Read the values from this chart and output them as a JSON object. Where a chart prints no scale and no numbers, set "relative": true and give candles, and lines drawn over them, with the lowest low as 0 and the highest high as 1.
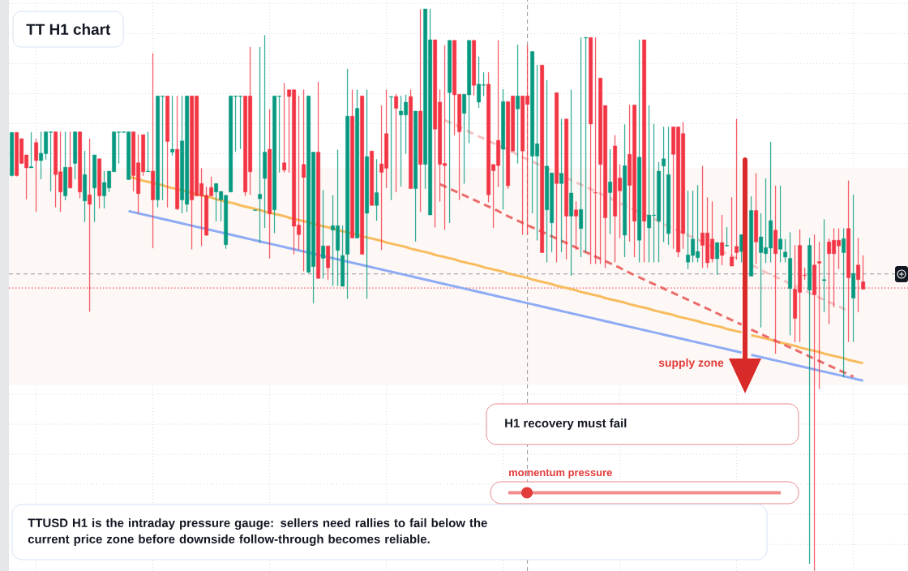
{
  "chart_data": {
    "type": "candlestick",
    "title": "TT H1 chart",
    "relative": true,
    "grid": true,
    "annotations": [
      "H1 recovery must fail",
      "momentum pressure",
      "TTUSD H1 is the intraday pressure gauge: sellers need rallies to fail below the current price zone before downside follow-through becomes reliable."
    ],
    "categories": [
      null,
      null,
      null,
      null,
      null,
      null,
      null,
      null,
      null,
      null,
      null,
      null,
      null,
      null,
      null,
      null,
      null,
      null,
      null,
      null,
      null,
      null,
      null,
      null,
      null,
      null,
      null,
      null,
      null,
      null,
      null,
      null,
      null,
      null,
      null,
      null,
      null,
      null,
      null,
      null,
      null,
      null,
      null,
      null,
      null,
      null,
      null,
      null,
      null,
      null,
      null,
      null,
      null,
      null,
      null,
      null,
      null,
      null,
      null,
      null,
      null,
      null,
      null,
      null,
      null,
      null,
      null,
      null,
      null,
      null,
      null,
      null,
      null,
      null,
      null,
      null,
      null,
      null,
      null,
      null,
      null,
      null,
      null,
      null,
      null,
      null,
      null,
      null,
      null,
      null,
      null,
      null,
      null,
      null,
      null,
      null,
      null,
      null,
      null,
      null,
      null,
      null,
      null,
      null,
      null,
      null,
      null,
      null,
      null,
      null,
      null,
      null,
      null,
      null,
      null,
      null,
      null,
      null,
      null,
      null,
      null,
      null,
      null,
      null,
      null,
      null,
      null,
      null,
      null,
      null,
      null,
      null,
      null,
      null,
      null,
      null,
      null,
      null,
      null,
      null,
      null,
      null,
      null,
      null,
      null,
      null,
      null,
      null,
      null,
      null,
      null,
      null,
      null,
      null,
      null,
      null,
      null,
      null,
      null,
      null,
      null,
      null,
      null,
      null,
      null,
      null,
      null,
      null,
      null,
      null,
      null,
      null,
      null,
      null,
      null,
      null
    ],
    "ohlc": [
      [
        0.703,
        0.78,
        0.702,
        0.78
      ],
      [
        0.78,
        0.78,
        0.702,
        0.703
      ],
      [
        0.769,
        0.769,
        0.724,
        0.725
      ],
      [
        0.74,
        0.74,
        0.661,
        0.717
      ],
      [
        0.717,
        0.78,
        0.717,
        0.719
      ],
      [
        0.762,
        0.769,
        0.639,
        0.73
      ],
      [
        0.73,
        0.781,
        0.697,
        0.743
      ],
      [
        0.742,
        0.781,
        0.732,
        0.781
      ],
      [
        0.78,
        0.781,
        0.675,
        0.781
      ],
      [
        0.781,
        0.781,
        0.647,
        0.705
      ],
      [
        0.71,
        0.781,
        0.639,
        0.674
      ],
      [
        0.667,
        0.781,
        0.66,
        0.718
      ],
      [
        0.718,
        0.781,
        0.681,
        0.681
      ],
      [
        0.725,
        0.781,
        0.697,
        0.781
      ],
      [
        0.781,
        0.781,
        0.663,
        0.674
      ],
      [
        0.658,
        0.747,
        0.621,
        0.705
      ],
      [
        0.669,
        0.769,
        0.461,
        0.652
      ],
      [
        0.681,
        0.74,
        0.621,
        0.74
      ],
      [
        0.733,
        0.733,
        0.645,
        0.667
      ],
      [
        0.667,
        0.711,
        0.645,
        0.691
      ],
      [
        0.681,
        0.711,
        0.674,
        0.711
      ],
      [
        0.71,
        0.781,
        0.71,
        0.781
      ],
      [
        0.78,
        0.781,
        0.725,
        0.781
      ],
      [
        0.78,
        0.781,
        0.78,
        0.781
      ],
      [
        0.696,
        0.781,
        0.696,
        0.781
      ],
      [
        0.781,
        0.781,
        0.675,
        0.703
      ],
      [
        0.726,
        0.776,
        0.636,
        0.671
      ],
      [
        0.776,
        0.776,
        0.703,
        0.71
      ],
      [
        0.71,
        0.781,
        0.71,
        0.711
      ],
      [
        0.711,
        0.921,
        0.574,
        0.66
      ],
      [
        0.66,
        0.845,
        0.647,
        0.845
      ],
      [
        0.844,
        0.845,
        0.66,
        0.845
      ],
      [
        0.845,
        0.845,
        0.647,
        0.764
      ],
      [
        0.745,
        0.845,
        0.739,
        0.75
      ],
      [
        0.75,
        0.845,
        0.642,
        0.644
      ],
      [
        0.66,
        0.845,
        0.636,
        0.765
      ],
      [
        0.652,
        0.845,
        0.639,
        0.845
      ],
      [
        0.845,
        0.845,
        0.572,
        0.66
      ],
      [
        0.845,
        0.845,
        0.667,
        0.667
      ],
      [
        0.689,
        0.716,
        0.578,
        0.667
      ],
      [
        0.668,
        0.683,
        0.596,
        0.597
      ],
      [
        0.682,
        0.701,
        0.667,
        0.667
      ],
      [
        0.674,
        0.689,
        0.622,
        0.689
      ],
      [
        0.66,
        0.675,
        0.622,
        0.675
      ],
      [
        0.58,
        0.668,
        0.573,
        0.668
      ],
      [
        0.674,
        0.845,
        0.674,
        0.845
      ],
      [
        0.844,
        0.845,
        0.746,
        0.845
      ],
      [
        0.844,
        0.845,
        0.751,
        0.845
      ],
      [
        0.845,
        0.845,
        0.667,
        0.674
      ],
      [
        0.845,
        0.932,
        0.669,
        0.71
      ],
      [
        0.641,
        0.642,
        0.641,
        0.642
      ],
      [
        0.662,
        0.932,
        0.583,
        0.67
      ],
      [
        0.698,
        0.953,
        0.61,
        0.745
      ],
      [
        0.75,
        0.821,
        0.556,
        0.635
      ],
      [
        0.642,
        0.845,
        0.601,
        0.845
      ],
      [
        0.844,
        0.845,
        0.709,
        0.845
      ],
      [
        0.726,
        0.868,
        0.709,
        0.713
      ],
      [
        0.856,
        0.856,
        0.709,
        0.844
      ],
      [
        0.856,
        0.856,
        0.563,
        0.613
      ],
      [
        0.615,
        0.845,
        0.571,
        0.598
      ],
      [
        0.723,
        0.856,
        0.533,
        0.7
      ],
      [
        0.531,
        0.845,
        0.53,
        0.845
      ],
      [
        0.541,
        0.745,
        0.476,
        0.745
      ],
      [
        0.745,
        0.87,
        0.52,
        0.52
      ],
      [
        0.556,
        0.677,
        0.52,
        0.578
      ],
      [
        0.578,
        0.578,
        0.518,
        0.539
      ],
      [
        0.606,
        0.668,
        0.507,
        0.614
      ],
      [
        0.57,
        0.749,
        0.507,
        0.614
      ],
      [
        0.506,
        0.614,
        0.506,
        0.561
      ],
      [
        0.563,
        0.893,
        0.484,
        0.809
      ],
      [
        0.809,
        0.856,
        0.592,
        0.592
      ],
      [
        0.592,
        0.856,
        0.592,
        0.823
      ],
      [
        0.845,
        0.845,
        0.563,
        0.563
      ],
      [
        0.636,
        0.856,
        0.484,
        0.737
      ],
      [
        0.747,
        0.747,
        0.65,
        0.65
      ],
      [
        0.65,
        0.732,
        0.623,
        0.673
      ],
      [
        0.724,
        0.828,
        0.571,
        0.709
      ],
      [
        0.778,
        0.856,
        0.681,
        0.716
      ],
      [
        0.843,
        0.844,
        0.66,
        0.844
      ],
      [
        0.844,
        0.848,
        0.674,
        0.823
      ],
      [
        0.811,
        0.845,
        0.684,
        0.818
      ],
      [
        0.811,
        0.847,
        0.742,
        0.834
      ],
      [
        0.844,
        0.856,
        0.68,
        0.68
      ],
      [
        0.68,
        0.818,
        0.586,
        0.818
      ],
      [
        0.818,
        0.999,
        0.639,
        0.723
      ],
      [
        0.723,
        1.0,
        0.68,
        1.0
      ],
      [
        0.633,
        1.0,
        0.633,
        0.945
      ],
      [
        0.945,
        0.945,
        0.611,
        0.786
      ],
      [
        0.834,
        0.856,
        0.657,
        0.723
      ],
      [
        0.725,
        0.935,
        0.607,
        0.721
      ],
      [
        0.851,
        0.944,
        0.619,
        0.944
      ],
      [
        0.944,
        0.944,
        0.775,
        0.847
      ],
      [
        0.848,
        0.848,
        0.66,
        0.781
      ],
      [
        0.814,
        0.848,
        0.689,
        0.848
      ],
      [
        0.847,
        0.944,
        0.761,
        0.944
      ],
      [
        0.944,
        0.944,
        0.846,
        0.864
      ],
      [
        0.834,
        0.915,
        0.824,
        0.866
      ],
      [
        0.864,
        0.887,
        0.845,
        0.865
      ],
      [
        0.866,
        0.887,
        0.656,
        0.669
      ],
      [
        0.723,
        0.723,
        0.61,
        0.712
      ],
      [
        0.766,
        0.944,
        0.683,
        0.721
      ],
      [
        0.75,
        0.857,
        0.643,
        0.835
      ],
      [
        0.835,
        0.835,
        0.68,
        0.685
      ],
      [
        0.845,
        0.845,
        0.747,
        0.747
      ],
      [
        0.822,
        0.936,
        0.725,
        0.845
      ],
      [
        0.845,
        0.845,
        0.598,
        0.747
      ],
      [
        0.845,
        0.936,
        0.598,
        0.83
      ],
      [
        0.738,
        0.924,
        0.636,
        0.924
      ],
      [
        0.738,
        0.9,
        0.588,
        0.76
      ],
      [
        0.9,
        0.9,
        0.566,
        0.566
      ],
      [
        0.642,
        0.873,
        0.549,
        0.72
      ],
      [
        0.619,
        0.708,
        0.567,
        0.708
      ],
      [
        0.851,
        0.851,
        0.549,
        0.689
      ],
      [
        0.689,
        0.804,
        0.567,
        0.707
      ],
      [
        0.804,
        0.804,
        0.554,
        0.631
      ],
      [
        0.631,
        0.856,
        0.525,
        0.672
      ],
      [
        0.642,
        0.657,
        0.571,
        0.631
      ],
      [
        0.609,
        0.949,
        0.558,
        0.643
      ],
      [
        0.948,
        0.949,
        0.567,
        0.949
      ],
      [
        0.949,
        0.949,
        0.546,
        0.795
      ],
      [
        0.673,
        0.949,
        0.546,
        0.672
      ],
      [
        0.877,
        0.877,
        0.546,
        0.723
      ],
      [
        0.828,
        0.828,
        0.539,
        0.628
      ],
      [
        0.673,
        0.75,
        0.599,
        0.692
      ],
      [
        0.756,
        0.775,
        0.549,
        0.631
      ],
      [
        0.699,
        0.723,
        0.592,
        0.676
      ],
      [
        0.597,
        0.794,
        0.558,
        0.721
      ],
      [
        0.741,
        0.829,
        0.586,
        0.686
      ],
      [
        0.829,
        0.829,
        0.558,
        0.622
      ],
      [
        0.588,
        0.945,
        0.549,
        0.736
      ],
      [
        0.945,
        0.945,
        0.549,
        0.622
      ],
      [
        0.61,
        0.828,
        0.549,
        0.633
      ],
      [
        0.632,
        0.795,
        0.549,
        0.633
      ],
      [
        0.622,
        0.727,
        0.549,
        0.711
      ],
      [
        0.72,
        0.79,
        0.585,
        0.733
      ],
      [
        0.6,
        0.79,
        0.58,
        0.705
      ],
      [
        0.79,
        0.79,
        0.573,
        0.741
      ],
      [
        0.79,
        0.79,
        0.558,
        0.567
      ],
      [
        0.778,
        0.798,
        0.573,
        0.6
      ],
      [
        0.549,
        0.676,
        0.537,
        0.562
      ],
      [
        0.561,
        0.676,
        0.549,
        0.59
      ],
      [
        0.557,
        0.686,
        0.549,
        0.568
      ],
      [
        0.601,
        0.72,
        0.539,
        0.579
      ],
      [
        0.601,
        0.664,
        0.539,
        0.548
      ],
      [
        0.59,
        0.657,
        0.549,
        0.555
      ],
      [
        0.555,
        0.584,
        0.527,
        0.584
      ],
      [
        0.584,
        0.633,
        0.544,
        0.561
      ],
      [
        0.578,
        0.611,
        0.577,
        0.579
      ],
      [
        0.558,
        0.664,
        0.542,
        0.542
      ],
      [
        0.577,
        0.804,
        0.554,
        0.566
      ],
      [
        0.568,
        0.598,
        0.549,
        0.598
      ],
      null,
      [
        0.524,
        0.666,
        0.524,
        0.641
      ],
      [
        0.641,
        0.707,
        0.546,
        0.585
      ],
      [
        0.566,
        0.636,
        0.433,
        0.594
      ],
      [
        0.564,
        0.698,
        0.548,
        0.575
      ],
      [
        0.574,
        0.763,
        0.549,
        0.623
      ],
      [
        0.606,
        0.685,
        0.386,
        0.564
      ],
      [
        0.572,
        0.685,
        0.549,
        0.59
      ],
      [
        0.558,
        0.59,
        0.549,
        0.567
      ],
      [
        0.502,
        0.602,
        0.419,
        0.556
      ],
      [
        0.501,
        0.579,
        0.407,
        0.449
      ],
      [
        0.579,
        0.607,
        0.407,
        0.495
      ],
      [
        0.526,
        0.539,
        0.518,
        0.525
      ],
      [
        0.499,
        0.592,
        0.012,
        0.579
      ],
      [
        0.544,
        0.598,
        0,
        0.491
      ],
      [
        0.55,
        0.585,
        0.323,
        0.547
      ],
      [
        0.516,
        0.625,
        0.46,
        0.518
      ],
      [
        0.585,
        0.591,
        0.439,
        0.564
      ],
      [
        0.588,
        0.609,
        0.469,
        0.564
      ],
      [
        0.588,
        0.609,
        0.537,
        0.578
      ],
      [
        0.566,
        0.609,
        0.344,
        0.591
      ],
      [
        0.609,
        0.694,
        0.407,
        0.521
      ],
      [
        0.485,
        0.669,
        0.407,
        0.529
      ],
      [
        0.544,
        0.592,
        0.46,
        0.518
      ],
      [
        0.514,
        0.561,
        0.501,
        0.501
      ]
    ],
    "series": [
      {
        "type": "line",
        "color": "#f8bc5e",
        "values": [
          null,
          null,
          null,
          null,
          null,
          null,
          null,
          null,
          null,
          null,
          null,
          null,
          null,
          null,
          null,
          null,
          null,
          null,
          null,
          null,
          null,
          null,
          null,
          null,
          0.701,
          0.699,
          0.697,
          0.694,
          0.692,
          0.69,
          0.688,
          0.686,
          0.683,
          0.681,
          0.679,
          0.677,
          0.675,
          0.672,
          0.67,
          0.668,
          0.666,
          0.664,
          0.661,
          0.659,
          0.657,
          0.655,
          0.653,
          0.65,
          0.648,
          0.646,
          0.644,
          0.642,
          0.639,
          0.637,
          0.635,
          0.633,
          0.631,
          0.628,
          0.626,
          0.624,
          0.622,
          0.62,
          0.617,
          0.615,
          0.613,
          0.611,
          0.609,
          0.606,
          0.604,
          0.602,
          0.6,
          0.598,
          0.595,
          0.593,
          0.591,
          0.589,
          0.587,
          0.584,
          0.582,
          0.58,
          0.578,
          0.576,
          0.573,
          0.571,
          0.569,
          0.567,
          0.565,
          0.562,
          0.56,
          0.558,
          0.556,
          0.554,
          0.551,
          0.549,
          0.547,
          0.545,
          0.543,
          0.54,
          0.538,
          0.536,
          0.534,
          0.532,
          0.529,
          0.527,
          0.525,
          0.523,
          0.521,
          0.518,
          0.516,
          0.514,
          0.512,
          0.51,
          0.507,
          0.505,
          0.503,
          0.501,
          0.499,
          0.496,
          0.494,
          0.492,
          0.49,
          0.488,
          0.485,
          0.483,
          0.481,
          0.479,
          0.477,
          0.474,
          0.472,
          0.47,
          0.468,
          0.466,
          0.463,
          0.461,
          0.459,
          0.457,
          0.455,
          0.452,
          0.45,
          0.448,
          0.446,
          0.444,
          0.441,
          0.439,
          0.437,
          0.435,
          0.433,
          0.43,
          0.428,
          0.426,
          0.424,
          null,
          0.419,
          0.417,
          0.415,
          0.413,
          0.411,
          0.408,
          0.406,
          0.404,
          0.402,
          0.4,
          0.397,
          0.395,
          0.393,
          0.391,
          0.389,
          0.386,
          0.384,
          0.382,
          0.38,
          0.378,
          0.375,
          0.373,
          0.371,
          0.369
        ]
      },
      {
        "type": "line",
        "color": "#8eabf5",
        "values": [
          null,
          null,
          null,
          null,
          null,
          null,
          null,
          null,
          null,
          null,
          null,
          null,
          null,
          null,
          null,
          null,
          null,
          null,
          null,
          null,
          null,
          null,
          null,
          null,
          0.64,
          0.638,
          0.636,
          0.634,
          0.632,
          0.63,
          0.628,
          0.626,
          0.624,
          0.622,
          0.62,
          0.618,
          0.616,
          0.614,
          0.612,
          0.61,
          0.608,
          0.606,
          0.604,
          0.602,
          0.6,
          0.598,
          0.596,
          0.594,
          0.592,
          0.59,
          0.588,
          0.586,
          0.584,
          0.582,
          0.58,
          0.578,
          0.576,
          0.574,
          0.572,
          0.57,
          0.568,
          0.566,
          0.564,
          0.562,
          0.56,
          0.558,
          0.556,
          0.554,
          0.552,
          0.55,
          0.548,
          0.546,
          0.544,
          0.542,
          0.54,
          0.538,
          0.536,
          0.534,
          0.532,
          0.53,
          0.528,
          0.526,
          0.524,
          0.522,
          0.52,
          0.518,
          0.516,
          0.514,
          0.512,
          0.51,
          0.508,
          0.506,
          0.504,
          0.502,
          0.5,
          0.498,
          0.496,
          0.494,
          0.492,
          0.49,
          0.488,
          0.486,
          0.484,
          0.482,
          0.48,
          0.478,
          0.476,
          0.474,
          0.472,
          0.47,
          0.468,
          0.466,
          0.464,
          0.462,
          0.46,
          0.458,
          0.456,
          0.454,
          0.452,
          0.45,
          0.448,
          0.446,
          0.444,
          0.442,
          0.44,
          0.438,
          0.436,
          0.434,
          0.432,
          0.43,
          0.428,
          0.426,
          0.424,
          0.422,
          0.42,
          0.418,
          0.416,
          0.414,
          0.412,
          0.41,
          0.408,
          0.406,
          0.404,
          0.402,
          0.4,
          0.398,
          0.396,
          0.394,
          0.392,
          0.39,
          0.388,
          null,
          0.384,
          0.382,
          0.38,
          0.378,
          0.376,
          0.374,
          0.372,
          0.37,
          0.368,
          0.366,
          0.364,
          0.362,
          0.36,
          0.358,
          0.356,
          0.354,
          0.352,
          0.35,
          0.348,
          0.346,
          0.344,
          0.342,
          0.34,
          0.338
        ]
      },
      {
        "type": "line",
        "color": "#ec6b6b",
        "line_style": "dashed",
        "values": [
          null,
          null,
          null,
          null,
          null,
          null,
          null,
          null,
          null,
          null,
          null,
          null,
          null,
          null,
          null,
          null,
          null,
          null,
          null,
          null,
          null,
          null,
          null,
          null,
          null,
          null,
          null,
          null,
          null,
          null,
          null,
          null,
          null,
          null,
          null,
          null,
          null,
          null,
          null,
          null,
          null,
          null,
          null,
          null,
          null,
          null,
          null,
          null,
          null,
          null,
          null,
          null,
          null,
          null,
          null,
          null,
          null,
          null,
          null,
          null,
          null,
          null,
          null,
          null,
          null,
          null,
          null,
          null,
          null,
          null,
          null,
          null,
          null,
          null,
          null,
          null,
          null,
          null,
          null,
          null,
          null,
          null,
          null,
          null,
          null,
          null,
          null,
          null,
          0.688,
          0.684,
          0.68,
          0.676,
          0.672,
          0.668,
          0.664,
          0.66,
          0.656,
          0.652,
          0.648,
          0.644,
          0.64,
          0.635,
          0.631,
          0.627,
          0.623,
          0.619,
          0.615,
          0.611,
          0.607,
          0.603,
          0.599,
          0.595,
          0.591,
          0.587,
          0.583,
          0.579,
          0.575,
          0.571,
          0.567,
          0.563,
          0.559,
          0.555,
          0.551,
          0.547,
          0.543,
          0.539,
          0.534,
          0.53,
          0.526,
          0.522,
          0.518,
          0.514,
          0.51,
          0.506,
          0.502,
          0.498,
          0.494,
          0.49,
          0.486,
          0.482,
          0.478,
          0.474,
          0.47,
          0.466,
          0.462,
          0.458,
          0.454,
          0.45,
          0.446,
          0.442,
          0.438,
          null,
          0.429,
          0.425,
          0.421,
          0.417,
          0.413,
          0.409,
          0.405,
          0.401,
          0.397,
          0.393,
          0.389,
          0.385,
          0.381,
          0.377,
          0.373,
          0.369,
          0.365,
          0.361,
          0.357,
          0.353,
          0.349,
          0.345,
          null,
          null
        ]
      },
      {
        "type": "line",
        "color": "#f6c3c3",
        "line_style": "dashed",
        "values": [
          null,
          null,
          null,
          null,
          null,
          null,
          null,
          null,
          null,
          null,
          null,
          null,
          null,
          null,
          null,
          null,
          null,
          null,
          null,
          null,
          null,
          null,
          null,
          null,
          null,
          null,
          null,
          null,
          null,
          null,
          null,
          null,
          null,
          null,
          null,
          null,
          null,
          null,
          null,
          null,
          null,
          null,
          null,
          null,
          null,
          null,
          null,
          null,
          null,
          null,
          null,
          null,
          null,
          null,
          null,
          null,
          null,
          null,
          null,
          null,
          null,
          null,
          null,
          null,
          null,
          null,
          null,
          null,
          null,
          null,
          null,
          null,
          null,
          null,
          null,
          null,
          null,
          null,
          null,
          null,
          null,
          null,
          null,
          null,
          null,
          null,
          null,
          null,
          null,
          0.802,
          0.798,
          0.794,
          0.79,
          0.786,
          0.781,
          0.777,
          0.773,
          0.769,
          0.765,
          0.761,
          0.757,
          0.753,
          0.749,
          0.745,
          0.74,
          0.736,
          0.732,
          0.728,
          0.724,
          0.72,
          0.716,
          0.712,
          0.708,
          0.704,
          0.699,
          0.695,
          0.691,
          0.687,
          0.683,
          0.679,
          0.675,
          0.671,
          0.667,
          0.663,
          0.658,
          0.654,
          0.65,
          0.646,
          0.642,
          0.638,
          0.634,
          0.63,
          0.626,
          0.622,
          0.617,
          0.613,
          0.609,
          0.605,
          0.601,
          0.597,
          0.593,
          0.589,
          0.585,
          0.581,
          0.576,
          0.572,
          0.568,
          0.564,
          0.56,
          0.556,
          0.552,
          null,
          0.544,
          0.54,
          0.535,
          0.531,
          0.527,
          0.523,
          0.519,
          0.515,
          0.511,
          0.507,
          0.503,
          0.499,
          0.494,
          0.49,
          0.486,
          0.482,
          0.478,
          0.474,
          0.47,
          0.466,
          0.462,
          null,
          null,
          null
        ]
      }
    ],
    "ref_lines": [
      {
        "axis": "y",
        "value": 0.528,
        "color": "#9598a1",
        "line_style": "dashed"
      },
      {
        "axis": "y",
        "value": 0.503,
        "color": "#f23645",
        "line_style": "dotted"
      }
    ],
    "bands": [
      {
        "axis": "y",
        "from": 0.33,
        "to": 0.717,
        "label": "supply zone",
        "color": "#fdf8f5"
      }
    ]
  }
}
